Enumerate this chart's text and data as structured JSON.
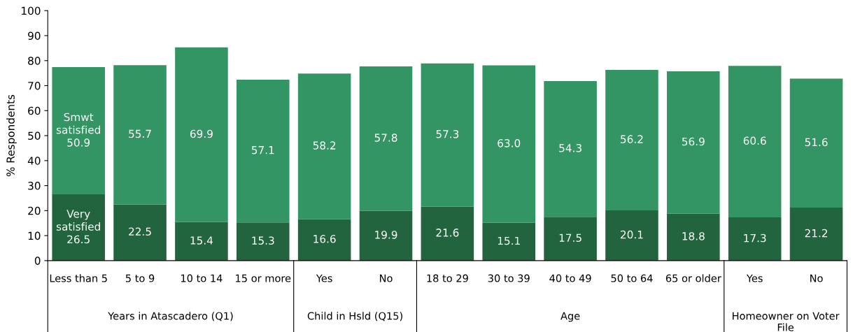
{
  "chart_data": {
    "type": "bar",
    "stacked": true,
    "ylabel": "% Respondents",
    "categories": [
      "Less than 5",
      "5 to 9",
      "10 to 14",
      "15 or more",
      "Yes",
      "No",
      "18 to 29",
      "30 to 39",
      "40 to 49",
      "50 to 64",
      "65 or older",
      "Yes",
      "No"
    ],
    "series": [
      {
        "name": "Very satisfied",
        "color": "#22643e",
        "values": [
          26.5,
          22.5,
          15.4,
          15.3,
          16.6,
          19.9,
          21.6,
          15.1,
          17.5,
          20.1,
          18.8,
          17.3,
          21.2
        ]
      },
      {
        "name": "Smwt satisfied",
        "color": "#339563",
        "values": [
          50.9,
          55.7,
          69.9,
          57.1,
          58.2,
          57.8,
          57.3,
          63.0,
          54.3,
          56.2,
          56.9,
          60.6,
          51.6
        ],
        "value_labels": [
          "50.9",
          "55.7",
          "69.9",
          "57.1",
          "58.2",
          "57.8",
          "57.3",
          "63.0",
          "54.3",
          "56.2",
          "56.9",
          "60.6",
          "51.6"
        ]
      }
    ],
    "annotations": [
      "Years in Atascadero (Q1)",
      "Child in Hsld (Q15)",
      "Age",
      "Homeowner on Voter File"
    ],
    "ylim": [
      0,
      100
    ],
    "yticks": [
      0,
      10,
      20,
      30,
      40,
      50,
      60,
      70,
      80,
      90,
      100
    ],
    "data_labels": true,
    "grid": false,
    "legend": false
  }
}
